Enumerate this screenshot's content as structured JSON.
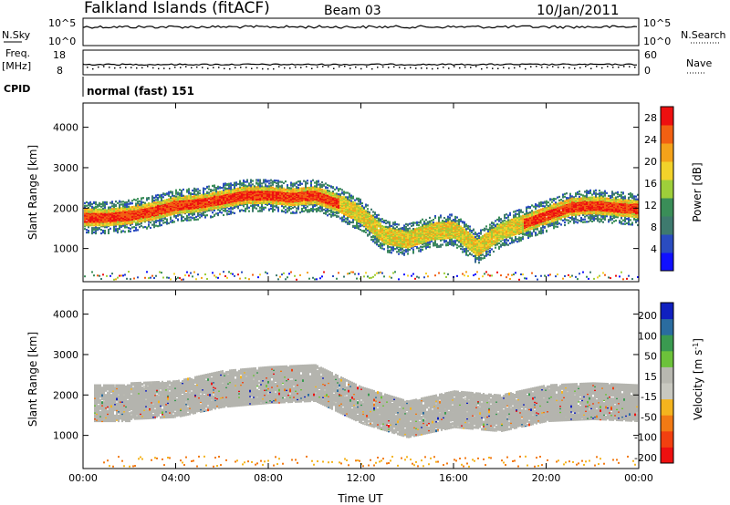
{
  "header": {
    "station": "Falkland Islands (fitACF)",
    "beam": "Beam 03",
    "date": "10/Jan/2011"
  },
  "panels": {
    "nsky": {
      "left_label": "N.Sky",
      "left_ticks": [
        "10^5",
        "10^0"
      ],
      "right_ticks": [
        "10^5",
        "10^0"
      ],
      "right_label": "N.Search"
    },
    "freq": {
      "left_label_1": "Freq.",
      "left_label_2": "[MHz]",
      "left_ticks": [
        "18",
        "8"
      ],
      "right_ticks": [
        "60",
        "0"
      ],
      "right_label": "Nave"
    },
    "cpid": {
      "label": "CPID",
      "value": "normal (fast) 151"
    }
  },
  "colors": {
    "power_scale": [
      "#1010ff",
      "#2a4cc0",
      "#3e7a6e",
      "#3a8e58",
      "#9ecf3a",
      "#f2d22a",
      "#f4a21a",
      "#f26012",
      "#ee1010"
    ],
    "velocity_scale": [
      "#ee1010",
      "#f24010",
      "#f27a14",
      "#f4b41e",
      "#c8c8c0",
      "#b8b8b0",
      "#6cc23a",
      "#3a9a50",
      "#2a6ca0",
      "#1020c0"
    ],
    "ground_scatter": "#b4b4ae"
  },
  "chart_data": [
    {
      "type": "heatmap",
      "title": "",
      "xlabel": "Time UT",
      "ylabel": "Slant Range [km]",
      "x_ticks": [
        "00:00",
        "04:00",
        "08:00",
        "12:00",
        "16:00",
        "20:00",
        "00:00"
      ],
      "y_ticks": [
        1000,
        2000,
        3000,
        4000
      ],
      "xlim_hours": [
        0,
        24
      ],
      "ylim": [
        180,
        4600
      ],
      "colorbar": {
        "label": "Power [dB]",
        "ticks": [
          4,
          8,
          12,
          16,
          20,
          24,
          28
        ],
        "range": [
          0,
          30
        ]
      },
      "band_center_km": [
        [
          0,
          1750
        ],
        [
          1,
          1750
        ],
        [
          2,
          1800
        ],
        [
          3,
          1900
        ],
        [
          4,
          2050
        ],
        [
          5,
          2100
        ],
        [
          6,
          2200
        ],
        [
          7,
          2300
        ],
        [
          8,
          2300
        ],
        [
          9,
          2250
        ],
        [
          10,
          2300
        ],
        [
          11,
          2100
        ],
        [
          12,
          1800
        ],
        [
          13,
          1300
        ],
        [
          14,
          1200
        ],
        [
          15,
          1400
        ],
        [
          16,
          1450
        ],
        [
          17,
          1000
        ],
        [
          18,
          1400
        ],
        [
          19,
          1600
        ],
        [
          20,
          1800
        ],
        [
          21,
          2000
        ],
        [
          22,
          2050
        ],
        [
          23,
          2000
        ],
        [
          24,
          1950
        ]
      ],
      "band_halfwidth_km": 220
    },
    {
      "type": "heatmap",
      "title": "",
      "xlabel": "Time UT",
      "ylabel": "Slant Range [km]",
      "x_ticks": [
        "00:00",
        "04:00",
        "08:00",
        "12:00",
        "16:00",
        "20:00",
        "00:00"
      ],
      "y_ticks": [
        1000,
        2000,
        3000,
        4000
      ],
      "xlim_hours": [
        0,
        24
      ],
      "ylim": [
        180,
        4600
      ],
      "colorbar": {
        "label": "Velocity [m s^-1]",
        "ticks": [
          -200,
          -100,
          -50,
          -15,
          15,
          50,
          100,
          200
        ]
      },
      "ground_scatter_center_km": [
        [
          2,
          1850
        ],
        [
          4,
          1900
        ],
        [
          6,
          2150
        ],
        [
          8,
          2250
        ],
        [
          10,
          2300
        ],
        [
          12,
          1750
        ],
        [
          14,
          1400
        ],
        [
          16,
          1650
        ],
        [
          18,
          1550
        ],
        [
          20,
          1800
        ],
        [
          22,
          1850
        ],
        [
          24,
          1800
        ]
      ],
      "ground_scatter_halfwidth_km": 450
    }
  ]
}
